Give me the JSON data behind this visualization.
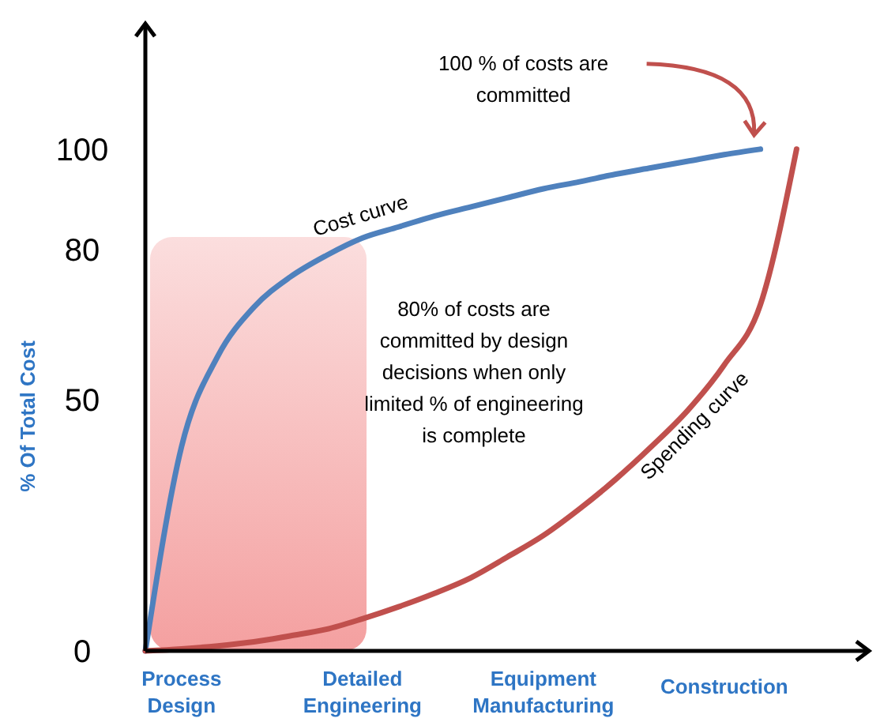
{
  "chart_data": {
    "type": "line",
    "ylabel": "% Of Total Cost",
    "categories": [
      null,
      "Process Design",
      null,
      null,
      null,
      null,
      "Detailed Engineering",
      null,
      null,
      null,
      null,
      "Equipment Manufacturing",
      null,
      null,
      null,
      null,
      "Construction",
      null,
      null,
      null,
      null
    ],
    "ylim": [
      0,
      125
    ],
    "yticks": [
      0,
      50,
      80,
      100
    ],
    "series": [
      {
        "name": "Cost curve",
        "color": "#4f81bd",
        "values": [
          0,
          40.7,
          58.7,
          68.5,
          74.5,
          78.8,
          82.3,
          84.5,
          86.7,
          88.5,
          90.3,
          92.1,
          93.5,
          95,
          96.3,
          97.6,
          98.9,
          100,
          null,
          null,
          null
        ]
      },
      {
        "name": "Spending curve",
        "color": "#c0504d",
        "values": [
          0,
          0.4,
          1,
          1.8,
          3,
          4.3,
          6.4,
          8.8,
          11.5,
          14.6,
          18.7,
          23,
          28.3,
          34.2,
          40.8,
          48,
          57,
          69,
          100,
          null,
          null
        ]
      }
    ],
    "annotations": [
      "100 % of costs are committed",
      "80% of costs are committed by design decisions when only limited % of engineering is complete"
    ],
    "grid": false,
    "marker": "none",
    "line_style": "solid"
  }
}
